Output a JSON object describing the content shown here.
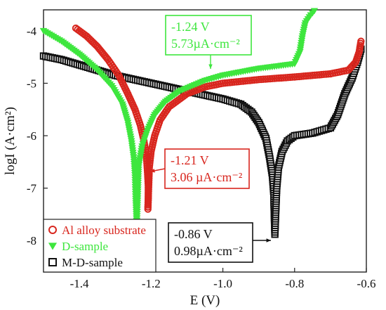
{
  "chart_data": {
    "type": "scatter",
    "xlabel": "E (V)",
    "ylabel": "logI (A·cm²)",
    "xlim": [
      -1.5,
      -0.6
    ],
    "ylim": [
      -8.6,
      -3.6
    ],
    "xticks": [
      -1.4,
      -1.2,
      -1.0,
      -0.8,
      -0.6
    ],
    "xtick_labels": [
      "-1.4",
      "-1.2",
      "-1.0",
      "-0.8",
      "-0.6"
    ],
    "yticks": [
      -8,
      -7,
      -6,
      -5,
      -4
    ],
    "ytick_labels": [
      "-8",
      "-7",
      "-6",
      "-5",
      "-4"
    ],
    "legend_position": "bottom-left",
    "series": [
      {
        "name": "Al alloy substrate",
        "marker": "circle",
        "color": "#d8261e",
        "points": [
          [
            -1.41,
            -3.95
          ],
          [
            -1.38,
            -4.1
          ],
          [
            -1.35,
            -4.3
          ],
          [
            -1.32,
            -4.55
          ],
          [
            -1.29,
            -4.85
          ],
          [
            -1.265,
            -5.2
          ],
          [
            -1.245,
            -5.5
          ],
          [
            -1.23,
            -5.8
          ],
          [
            -1.22,
            -6.1
          ],
          [
            -1.213,
            -6.4
          ],
          [
            -1.21,
            -6.7
          ],
          [
            -1.208,
            -6.95
          ],
          [
            -1.208,
            -7.2
          ],
          [
            -1.209,
            -7.4
          ],
          [
            -1.205,
            -6.6
          ],
          [
            -1.2,
            -6.3
          ],
          [
            -1.19,
            -6.0
          ],
          [
            -1.175,
            -5.7
          ],
          [
            -1.15,
            -5.45
          ],
          [
            -1.1,
            -5.2
          ],
          [
            -1.05,
            -5.07
          ],
          [
            -1.0,
            -5.0
          ],
          [
            -0.9,
            -4.93
          ],
          [
            -0.8,
            -4.88
          ],
          [
            -0.7,
            -4.82
          ],
          [
            -0.65,
            -4.75
          ],
          [
            -0.63,
            -4.6
          ],
          [
            -0.62,
            -4.4
          ],
          [
            -0.615,
            -4.2
          ]
        ]
      },
      {
        "name": "D-sample",
        "marker": "triangle",
        "color": "#3ee63e",
        "points": [
          [
            -1.5,
            -4.0
          ],
          [
            -1.45,
            -4.2
          ],
          [
            -1.4,
            -4.45
          ],
          [
            -1.35,
            -4.75
          ],
          [
            -1.31,
            -5.05
          ],
          [
            -1.28,
            -5.4
          ],
          [
            -1.265,
            -5.75
          ],
          [
            -1.255,
            -6.1
          ],
          [
            -1.248,
            -6.45
          ],
          [
            -1.245,
            -6.75
          ],
          [
            -1.243,
            -7.2
          ],
          [
            -1.24,
            -7.7
          ],
          [
            -1.235,
            -6.6
          ],
          [
            -1.225,
            -6.2
          ],
          [
            -1.21,
            -5.9
          ],
          [
            -1.19,
            -5.6
          ],
          [
            -1.16,
            -5.35
          ],
          [
            -1.12,
            -5.15
          ],
          [
            -1.05,
            -4.95
          ],
          [
            -1.0,
            -4.85
          ],
          [
            -0.9,
            -4.72
          ],
          [
            -0.8,
            -4.63
          ],
          [
            -0.785,
            -4.4
          ],
          [
            -0.778,
            -4.1
          ],
          [
            -0.77,
            -3.85
          ],
          [
            -0.755,
            -3.7
          ],
          [
            -0.745,
            -3.62
          ]
        ]
      },
      {
        "name": "M-D-sample",
        "marker": "square",
        "color": "#111111",
        "points": [
          [
            -1.5,
            -4.48
          ],
          [
            -1.45,
            -4.55
          ],
          [
            -1.4,
            -4.65
          ],
          [
            -1.3,
            -4.85
          ],
          [
            -1.2,
            -5.0
          ],
          [
            -1.1,
            -5.15
          ],
          [
            -1.0,
            -5.3
          ],
          [
            -0.95,
            -5.4
          ],
          [
            -0.92,
            -5.55
          ],
          [
            -0.9,
            -5.75
          ],
          [
            -0.88,
            -6.05
          ],
          [
            -0.87,
            -6.4
          ],
          [
            -0.862,
            -6.75
          ],
          [
            -0.858,
            -7.1
          ],
          [
            -0.857,
            -7.4
          ],
          [
            -0.856,
            -7.65
          ],
          [
            -0.855,
            -7.88
          ],
          [
            -0.85,
            -7.0
          ],
          [
            -0.845,
            -6.6
          ],
          [
            -0.835,
            -6.3
          ],
          [
            -0.82,
            -6.1
          ],
          [
            -0.8,
            -6.0
          ],
          [
            -0.75,
            -5.95
          ],
          [
            -0.7,
            -5.85
          ],
          [
            -0.68,
            -5.6
          ],
          [
            -0.66,
            -5.2
          ],
          [
            -0.64,
            -4.9
          ],
          [
            -0.625,
            -4.6
          ],
          [
            -0.615,
            -4.35
          ]
        ]
      }
    ],
    "annotations": [
      {
        "lines": [
          "-1.24 V",
          "5.73µA·cm⁻²"
        ],
        "color": "#3ee63e"
      },
      {
        "lines": [
          "-1.21 V",
          "3.06 µA·cm⁻²"
        ],
        "color": "#d8261e"
      },
      {
        "lines": [
          "-0.86 V",
          "0.98µA·cm⁻²"
        ],
        "color": "#111111"
      }
    ],
    "legend": [
      {
        "label": "Al alloy substrate",
        "color": "#d8261e",
        "marker": "circle"
      },
      {
        "label": "D-sample",
        "color": "#3ee63e",
        "marker": "triangle"
      },
      {
        "label": "M-D-sample",
        "color": "#111111",
        "marker": "square"
      }
    ]
  }
}
